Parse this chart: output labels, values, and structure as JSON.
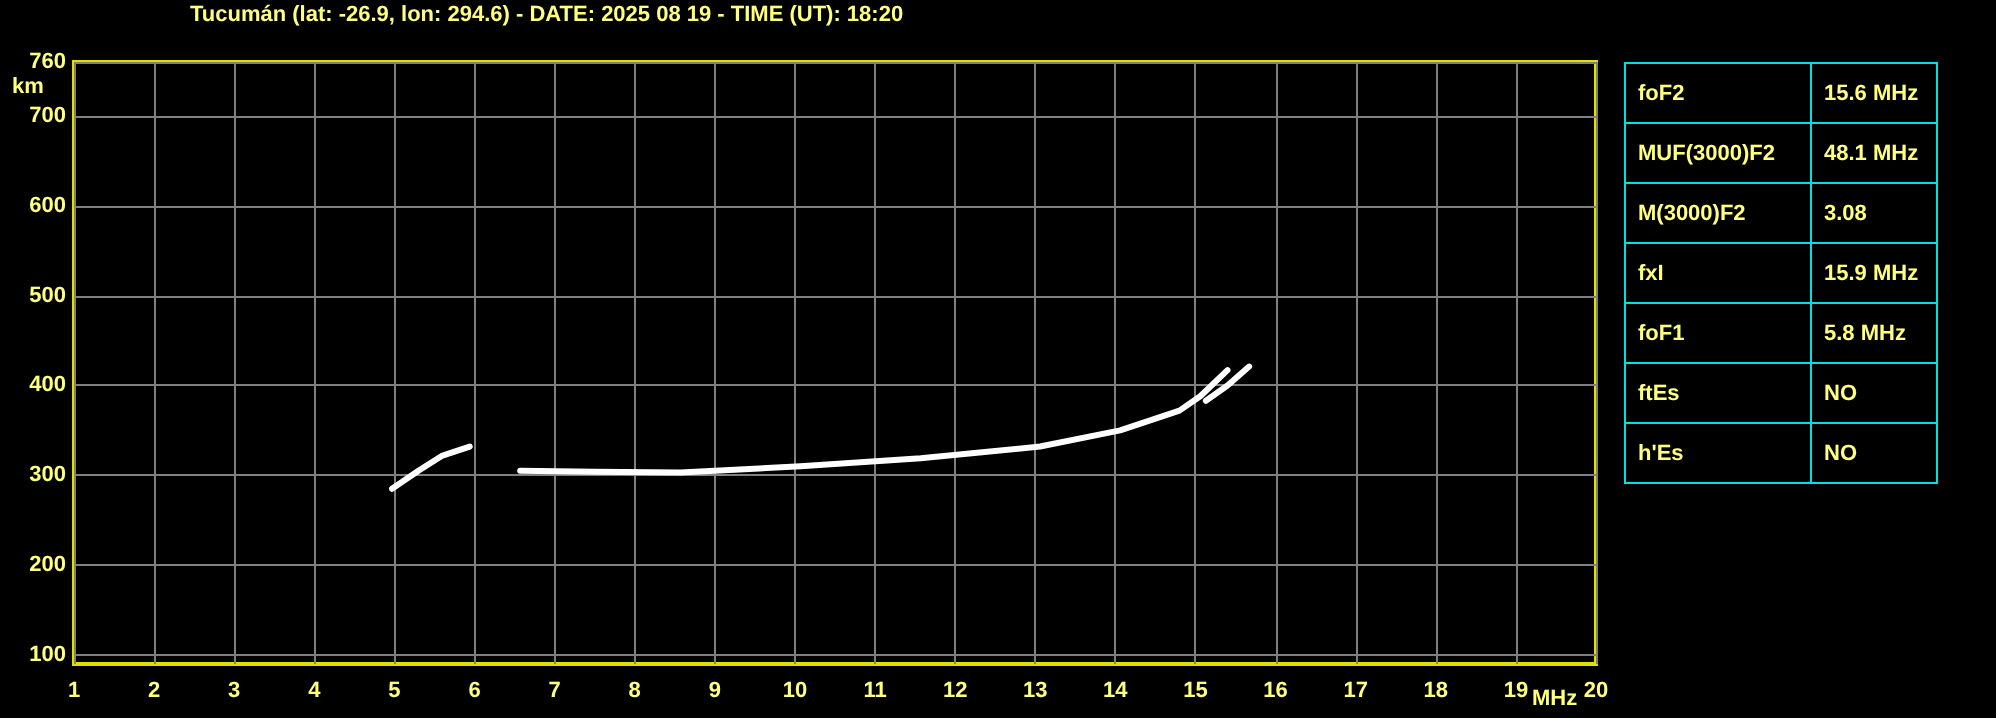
{
  "chart_data": [
    {
      "type": "line",
      "title": "Tucumán (lat: -26.9, lon: 294.6) - DATE: 2025 08 19 - TIME (UT): 18:20",
      "xlabel": "MHz",
      "ylabel": "km",
      "xlim": [
        1,
        20
      ],
      "xticks": [
        1,
        2,
        3,
        4,
        5,
        6,
        7,
        8,
        9,
        10,
        11,
        12,
        13,
        14,
        15,
        16,
        17,
        18,
        19,
        20
      ],
      "ylim": [
        90,
        760
      ],
      "yticks": [
        100,
        200,
        300,
        400,
        500,
        600,
        700,
        760
      ],
      "grid": true,
      "marker": "none",
      "line_style": "solid",
      "series": [
        {
          "color": "#ffffff",
          "x": [
            4.97,
            5.3,
            5.6,
            5.94
          ],
          "values": [
            285,
            305,
            322,
            332
          ]
        },
        {
          "color": "#ffffff",
          "x": [
            6.57,
            7.5,
            8.57,
            10.07,
            11.57,
            13.06,
            14.06,
            14.8,
            15.06,
            15.4
          ],
          "values": [
            305,
            304,
            303,
            310,
            319,
            332,
            350,
            372,
            388,
            417
          ]
        },
        {
          "color": "#ffffff",
          "x": [
            15.13,
            15.4,
            15.67
          ],
          "values": [
            383,
            400,
            421
          ]
        }
      ]
    },
    {
      "type": "other",
      "annotations": [
        "foF2",
        "15.6 MHz",
        "MUF(3000)F2",
        "48.1 MHz",
        "M(3000)F2",
        "3.08",
        "fxI",
        "15.9 MHz",
        "foF1",
        "5.8 MHz",
        "ftEs",
        "NO",
        "h'Es",
        "NO"
      ]
    }
  ]
}
